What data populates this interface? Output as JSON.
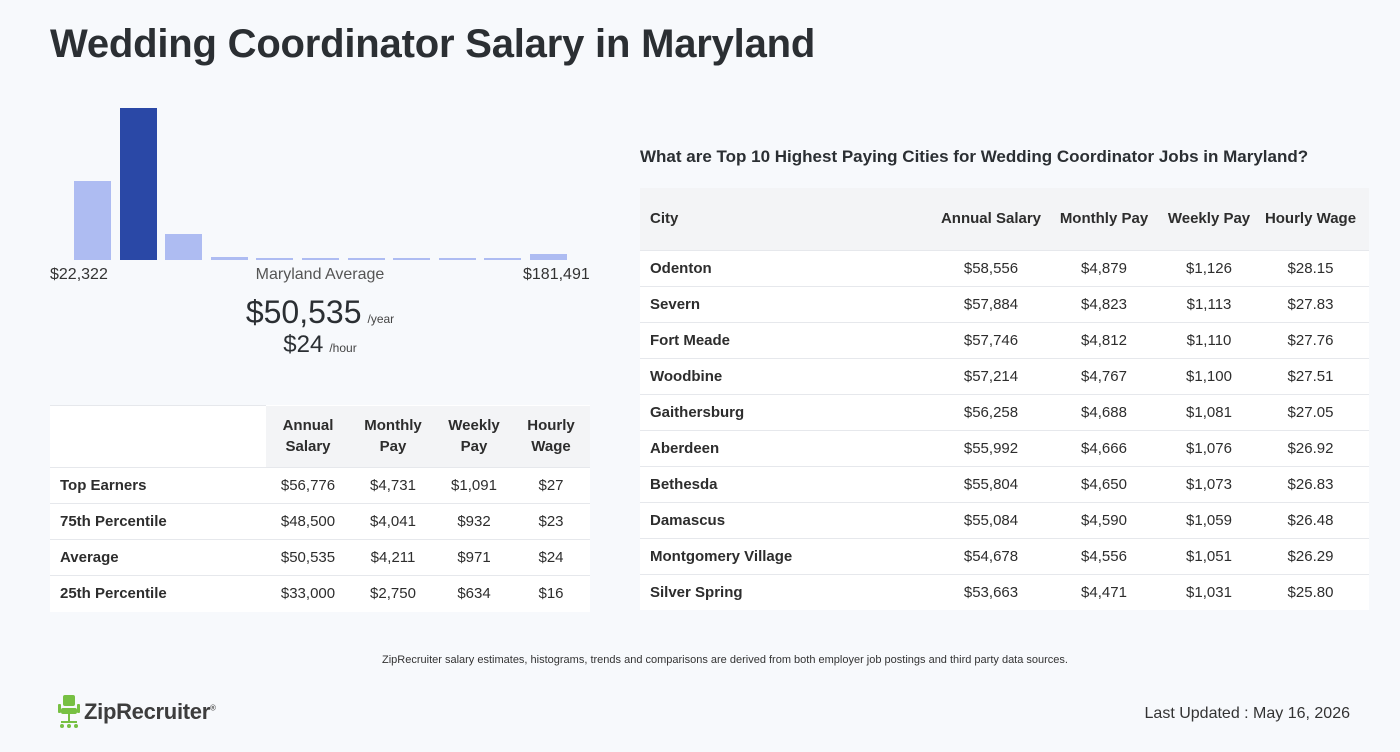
{
  "page": {
    "title": "Wedding Coordinator Salary in Maryland"
  },
  "histogram": {
    "range_min": "$22,322",
    "range_max": "$181,491",
    "range_label": "Maryland Average",
    "bar_levels": [
      0.52,
      1.0,
      0.17,
      0.02,
      0.01,
      0.01,
      0.01,
      0.01,
      0.01,
      0.01,
      0.04
    ],
    "highlight_index": 1,
    "bar_color": "#aebcf2",
    "highlight_color": "#2a48a6"
  },
  "average": {
    "yearly": "$50,535",
    "yearly_unit": "/year",
    "hourly": "$24",
    "hourly_unit": "/hour"
  },
  "percentile_table": {
    "headers": [
      "Annual Salary",
      "Monthly Pay",
      "Weekly Pay",
      "Hourly Wage"
    ],
    "rows": [
      {
        "label": "Top Earners",
        "values": [
          "$56,776",
          "$4,731",
          "$1,091",
          "$27"
        ]
      },
      {
        "label": "75th Percentile",
        "values": [
          "$48,500",
          "$4,041",
          "$932",
          "$23"
        ]
      },
      {
        "label": "Average",
        "values": [
          "$50,535",
          "$4,211",
          "$971",
          "$24"
        ]
      },
      {
        "label": "25th Percentile",
        "values": [
          "$33,000",
          "$2,750",
          "$634",
          "$16"
        ]
      }
    ]
  },
  "cities": {
    "title": "What are Top 10 Highest Paying Cities for Wedding Coordinator Jobs in Maryland?",
    "headers": [
      "City",
      "Annual Salary",
      "Monthly Pay",
      "Weekly Pay",
      "Hourly Wage"
    ],
    "rows": [
      {
        "city": "Odenton",
        "values": [
          "$58,556",
          "$4,879",
          "$1,126",
          "$28.15"
        ]
      },
      {
        "city": "Severn",
        "values": [
          "$57,884",
          "$4,823",
          "$1,113",
          "$27.83"
        ]
      },
      {
        "city": "Fort Meade",
        "values": [
          "$57,746",
          "$4,812",
          "$1,110",
          "$27.76"
        ]
      },
      {
        "city": "Woodbine",
        "values": [
          "$57,214",
          "$4,767",
          "$1,100",
          "$27.51"
        ]
      },
      {
        "city": "Gaithersburg",
        "values": [
          "$56,258",
          "$4,688",
          "$1,081",
          "$27.05"
        ]
      },
      {
        "city": "Aberdeen",
        "values": [
          "$55,992",
          "$4,666",
          "$1,076",
          "$26.92"
        ]
      },
      {
        "city": "Bethesda",
        "values": [
          "$55,804",
          "$4,650",
          "$1,073",
          "$26.83"
        ]
      },
      {
        "city": "Damascus",
        "values": [
          "$55,084",
          "$4,590",
          "$1,059",
          "$26.48"
        ]
      },
      {
        "city": "Montgomery Village",
        "values": [
          "$54,678",
          "$4,556",
          "$1,051",
          "$26.29"
        ]
      },
      {
        "city": "Silver Spring",
        "values": [
          "$53,663",
          "$4,471",
          "$1,031",
          "$25.80"
        ]
      }
    ]
  },
  "footer": {
    "disclaimer": "ZipRecruiter salary estimates, histograms, trends and comparisons are derived from both employer job postings and third party data sources.",
    "logo_text": "ZipRecruiter",
    "logo_reg": "®",
    "logo_icon": "ziprecruiter-chair-icon",
    "logo_color": "#77c043",
    "last_updated": "Last Updated : May 16, 2026"
  }
}
